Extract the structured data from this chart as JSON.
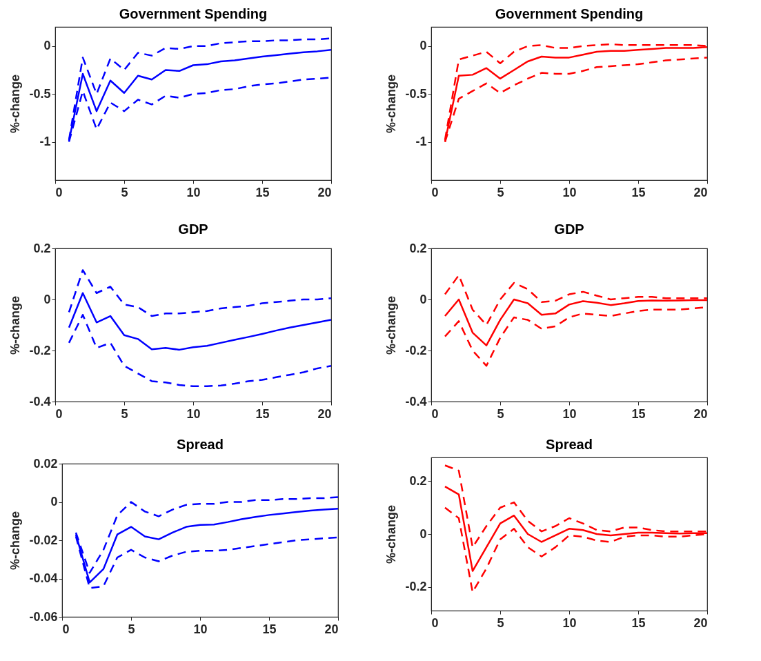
{
  "chart_data": [
    {
      "type": "line",
      "title": "Government Spending",
      "ylabel": "%-change",
      "x": [
        1,
        2,
        3,
        4,
        5,
        6,
        7,
        8,
        9,
        10,
        11,
        12,
        13,
        14,
        15,
        16,
        17,
        18,
        19,
        20
      ],
      "xlim": [
        0,
        20
      ],
      "xticks": [
        0,
        5,
        10,
        15,
        20
      ],
      "ylim": [
        -1.4,
        0.2
      ],
      "yticks": [
        -1,
        -0.5,
        0
      ],
      "grid": false,
      "series": [
        {
          "color": "#0000ff",
          "line_style": "solid",
          "values": [
            -0.99,
            -0.29,
            -0.68,
            -0.36,
            -0.49,
            -0.31,
            -0.35,
            -0.25,
            -0.26,
            -0.2,
            -0.19,
            -0.16,
            -0.15,
            -0.13,
            -0.11,
            -0.095,
            -0.08,
            -0.065,
            -0.055,
            -0.04
          ]
        },
        {
          "color": "#0000ff",
          "line_style": "dashed",
          "values": [
            -0.98,
            -0.12,
            -0.5,
            -0.13,
            -0.25,
            -0.07,
            -0.1,
            -0.02,
            -0.03,
            0.0,
            0.0,
            0.03,
            0.04,
            0.05,
            0.05,
            0.06,
            0.06,
            0.07,
            0.07,
            0.08
          ]
        },
        {
          "color": "#0000ff",
          "line_style": "dashed",
          "values": [
            -1.0,
            -0.47,
            -0.87,
            -0.59,
            -0.68,
            -0.56,
            -0.61,
            -0.52,
            -0.54,
            -0.5,
            -0.49,
            -0.46,
            -0.45,
            -0.42,
            -0.4,
            -0.39,
            -0.37,
            -0.35,
            -0.34,
            -0.33
          ]
        }
      ]
    },
    {
      "type": "line",
      "title": "Government Spending",
      "ylabel": "%-change",
      "x": [
        1,
        2,
        3,
        4,
        5,
        6,
        7,
        8,
        9,
        10,
        11,
        12,
        13,
        14,
        15,
        16,
        17,
        18,
        19,
        20
      ],
      "xlim": [
        0,
        20
      ],
      "xticks": [
        0,
        5,
        10,
        15,
        20
      ],
      "ylim": [
        -1.4,
        0.2
      ],
      "yticks": [
        -1,
        -0.5,
        0
      ],
      "grid": false,
      "series": [
        {
          "color": "#ff0000",
          "line_style": "solid",
          "values": [
            -1.0,
            -0.31,
            -0.3,
            -0.23,
            -0.34,
            -0.25,
            -0.16,
            -0.11,
            -0.12,
            -0.12,
            -0.09,
            -0.06,
            -0.05,
            -0.05,
            -0.04,
            -0.03,
            -0.02,
            -0.02,
            -0.02,
            -0.01
          ]
        },
        {
          "color": "#ff0000",
          "line_style": "dashed",
          "values": [
            -0.98,
            -0.14,
            -0.1,
            -0.06,
            -0.18,
            -0.06,
            0.0,
            0.01,
            -0.02,
            -0.02,
            0.0,
            0.01,
            0.02,
            0.01,
            0.01,
            0.01,
            0.01,
            0.01,
            0.01,
            0.0
          ]
        },
        {
          "color": "#ff0000",
          "line_style": "dashed",
          "values": [
            -1.0,
            -0.55,
            -0.47,
            -0.39,
            -0.49,
            -0.41,
            -0.34,
            -0.28,
            -0.29,
            -0.29,
            -0.26,
            -0.22,
            -0.21,
            -0.2,
            -0.19,
            -0.17,
            -0.15,
            -0.14,
            -0.13,
            -0.12
          ]
        }
      ]
    },
    {
      "type": "line",
      "title": "GDP",
      "ylabel": "%-change",
      "x": [
        1,
        2,
        3,
        4,
        5,
        6,
        7,
        8,
        9,
        10,
        11,
        12,
        13,
        14,
        15,
        16,
        17,
        18,
        19,
        20
      ],
      "xlim": [
        0,
        20
      ],
      "xticks": [
        0,
        5,
        10,
        15,
        20
      ],
      "ylim": [
        -0.4,
        0.2
      ],
      "yticks": [
        -0.4,
        -0.2,
        0,
        0.2
      ],
      "grid": false,
      "series": [
        {
          "color": "#0000ff",
          "line_style": "solid",
          "values": [
            -0.11,
            0.025,
            -0.09,
            -0.065,
            -0.14,
            -0.155,
            -0.195,
            -0.19,
            -0.197,
            -0.187,
            -0.182,
            -0.17,
            -0.158,
            -0.147,
            -0.135,
            -0.122,
            -0.11,
            -0.1,
            -0.09,
            -0.08
          ]
        },
        {
          "color": "#0000ff",
          "line_style": "dashed",
          "values": [
            -0.05,
            0.115,
            0.025,
            0.05,
            -0.02,
            -0.03,
            -0.065,
            -0.055,
            -0.055,
            -0.05,
            -0.045,
            -0.035,
            -0.03,
            -0.025,
            -0.015,
            -0.01,
            -0.005,
            0.0,
            0.0,
            0.005
          ]
        },
        {
          "color": "#0000ff",
          "line_style": "dashed",
          "values": [
            -0.17,
            -0.06,
            -0.19,
            -0.17,
            -0.26,
            -0.29,
            -0.32,
            -0.325,
            -0.335,
            -0.34,
            -0.34,
            -0.337,
            -0.33,
            -0.32,
            -0.315,
            -0.305,
            -0.295,
            -0.285,
            -0.27,
            -0.26
          ]
        }
      ]
    },
    {
      "type": "line",
      "title": "GDP",
      "ylabel": "%-change",
      "x": [
        1,
        2,
        3,
        4,
        5,
        6,
        7,
        8,
        9,
        10,
        11,
        12,
        13,
        14,
        15,
        16,
        17,
        18,
        19,
        20
      ],
      "xlim": [
        0,
        20
      ],
      "xticks": [
        0,
        5,
        10,
        15,
        20
      ],
      "ylim": [
        -0.4,
        0.2
      ],
      "yticks": [
        -0.4,
        -0.2,
        0,
        0.2
      ],
      "grid": false,
      "series": [
        {
          "color": "#ff0000",
          "line_style": "solid",
          "values": [
            -0.065,
            0.0,
            -0.13,
            -0.18,
            -0.08,
            0.0,
            -0.015,
            -0.06,
            -0.055,
            -0.02,
            -0.007,
            -0.013,
            -0.022,
            -0.015,
            -0.006,
            -0.004,
            -0.005,
            -0.004,
            -0.003,
            -0.003
          ]
        },
        {
          "color": "#ff0000",
          "line_style": "dashed",
          "values": [
            0.02,
            0.095,
            -0.04,
            -0.1,
            0.0,
            0.065,
            0.04,
            -0.01,
            -0.005,
            0.02,
            0.03,
            0.015,
            0.0,
            0.005,
            0.01,
            0.01,
            0.005,
            0.005,
            0.005,
            0.005
          ]
        },
        {
          "color": "#ff0000",
          "line_style": "dashed",
          "values": [
            -0.145,
            -0.085,
            -0.2,
            -0.26,
            -0.15,
            -0.07,
            -0.08,
            -0.115,
            -0.105,
            -0.07,
            -0.055,
            -0.06,
            -0.065,
            -0.055,
            -0.045,
            -0.04,
            -0.04,
            -0.04,
            -0.035,
            -0.03
          ]
        }
      ]
    },
    {
      "type": "line",
      "title": "Spread",
      "ylabel": "%-change",
      "x": [
        1,
        2,
        3,
        4,
        5,
        6,
        7,
        8,
        9,
        10,
        11,
        12,
        13,
        14,
        15,
        16,
        17,
        18,
        19,
        20
      ],
      "xlim": [
        0,
        20
      ],
      "xticks": [
        0,
        5,
        10,
        15,
        20
      ],
      "ylim": [
        -0.06,
        0.02
      ],
      "yticks": [
        -0.06,
        -0.04,
        -0.02,
        0,
        0.02
      ],
      "grid": false,
      "series": [
        {
          "color": "#0000ff",
          "line_style": "solid",
          "values": [
            -0.017,
            -0.042,
            -0.035,
            -0.017,
            -0.013,
            -0.018,
            -0.0195,
            -0.016,
            -0.013,
            -0.012,
            -0.0118,
            -0.0105,
            -0.009,
            -0.0078,
            -0.0068,
            -0.006,
            -0.0052,
            -0.0045,
            -0.004,
            -0.0035
          ]
        },
        {
          "color": "#0000ff",
          "line_style": "dashed",
          "values": [
            -0.016,
            -0.037,
            -0.025,
            -0.007,
            0.0,
            -0.005,
            -0.0075,
            -0.004,
            -0.0015,
            -0.001,
            -0.001,
            0.0,
            0.0,
            0.001,
            0.001,
            0.0015,
            0.0015,
            0.002,
            0.002,
            0.0025
          ]
        },
        {
          "color": "#0000ff",
          "line_style": "dashed",
          "values": [
            -0.018,
            -0.045,
            -0.044,
            -0.029,
            -0.025,
            -0.029,
            -0.031,
            -0.028,
            -0.026,
            -0.0255,
            -0.0255,
            -0.025,
            -0.024,
            -0.023,
            -0.022,
            -0.021,
            -0.02,
            -0.0195,
            -0.019,
            -0.0185
          ]
        }
      ]
    },
    {
      "type": "line",
      "title": "Spread",
      "ylabel": "%-change",
      "x": [
        1,
        2,
        3,
        4,
        5,
        6,
        7,
        8,
        9,
        10,
        11,
        12,
        13,
        14,
        15,
        16,
        17,
        18,
        19,
        20
      ],
      "xlim": [
        0,
        20
      ],
      "xticks": [
        0,
        5,
        10,
        15,
        20
      ],
      "ylim": [
        -0.29,
        0.29
      ],
      "yticks": [
        -0.2,
        0,
        0.2
      ],
      "grid": false,
      "series": [
        {
          "color": "#ff0000",
          "line_style": "solid",
          "values": [
            0.18,
            0.15,
            -0.14,
            -0.05,
            0.04,
            0.07,
            0.0,
            -0.03,
            -0.005,
            0.02,
            0.015,
            0.0,
            -0.005,
            0.0,
            0.005,
            0.005,
            0.003,
            0.002,
            0.003,
            0.003
          ]
        },
        {
          "color": "#ff0000",
          "line_style": "dashed",
          "values": [
            0.26,
            0.24,
            -0.05,
            0.03,
            0.1,
            0.12,
            0.05,
            0.01,
            0.03,
            0.06,
            0.04,
            0.015,
            0.01,
            0.025,
            0.025,
            0.015,
            0.01,
            0.01,
            0.01,
            0.01
          ]
        },
        {
          "color": "#ff0000",
          "line_style": "dashed",
          "values": [
            0.1,
            0.06,
            -0.22,
            -0.13,
            -0.02,
            0.02,
            -0.05,
            -0.085,
            -0.05,
            -0.005,
            -0.01,
            -0.025,
            -0.03,
            -0.01,
            -0.005,
            -0.005,
            -0.01,
            -0.01,
            -0.005,
            0.0
          ]
        }
      ]
    }
  ]
}
